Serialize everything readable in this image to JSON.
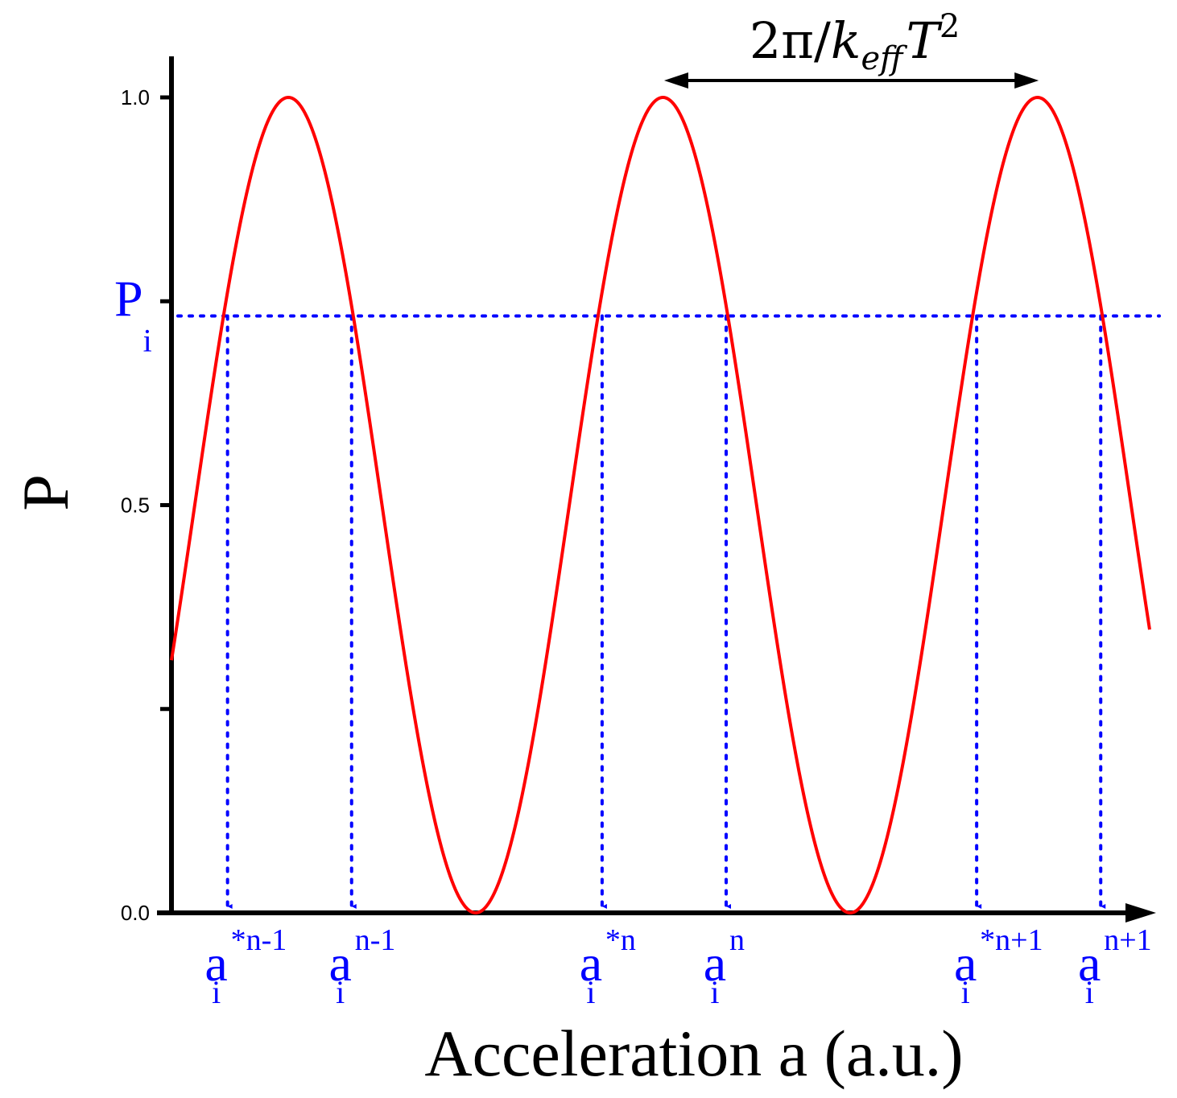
{
  "colors": {
    "curve": "#ff0000",
    "guide": "#0000ff",
    "axis": "#000000"
  },
  "chart_data": {
    "type": "line",
    "title": "",
    "xlabel": "Acceleration a (a.u.)",
    "ylabel": "P",
    "xlim": [
      0,
      8.2
    ],
    "ylim": [
      0,
      1.0
    ],
    "y_ticks": [
      {
        "value": 0.0,
        "label": "0.0"
      },
      {
        "value": 0.25,
        "label": ""
      },
      {
        "value": 0.5,
        "label": "0.5"
      },
      {
        "value": 0.75,
        "label": ""
      },
      {
        "value": 1.0,
        "label": "1.0"
      }
    ],
    "series": [
      {
        "function": "P = 0.5 * (1 - cos(2*pi*(a - 2.55)/3.14))",
        "period": 3.14,
        "x_range": [
          0,
          8.2
        ]
      }
    ],
    "threshold": {
      "label": "P",
      "subscript": "i",
      "value": 0.732
    },
    "marked_points": [
      {
        "x": 0.47,
        "base": "a",
        "sub": "i",
        "sup": "*n-1"
      },
      {
        "x": 1.51,
        "base": "a",
        "sub": "i",
        "sup": "n-1"
      },
      {
        "x": 3.61,
        "base": "a",
        "sub": "i",
        "sup": "*n"
      },
      {
        "x": 4.65,
        "base": "a",
        "sub": "i",
        "sup": "n"
      },
      {
        "x": 6.75,
        "base": "a",
        "sub": "i",
        "sup": "*n+1"
      },
      {
        "x": 7.79,
        "base": "a",
        "sub": "i",
        "sup": "n+1"
      }
    ],
    "period_annotation": {
      "from_x": 4.13,
      "to_x": 7.27,
      "text": {
        "coef": "2π/",
        "k": "k",
        "k_sub": "eff",
        "T": "T",
        "T_sup": "2"
      }
    },
    "grid": false,
    "legend": "none"
  }
}
